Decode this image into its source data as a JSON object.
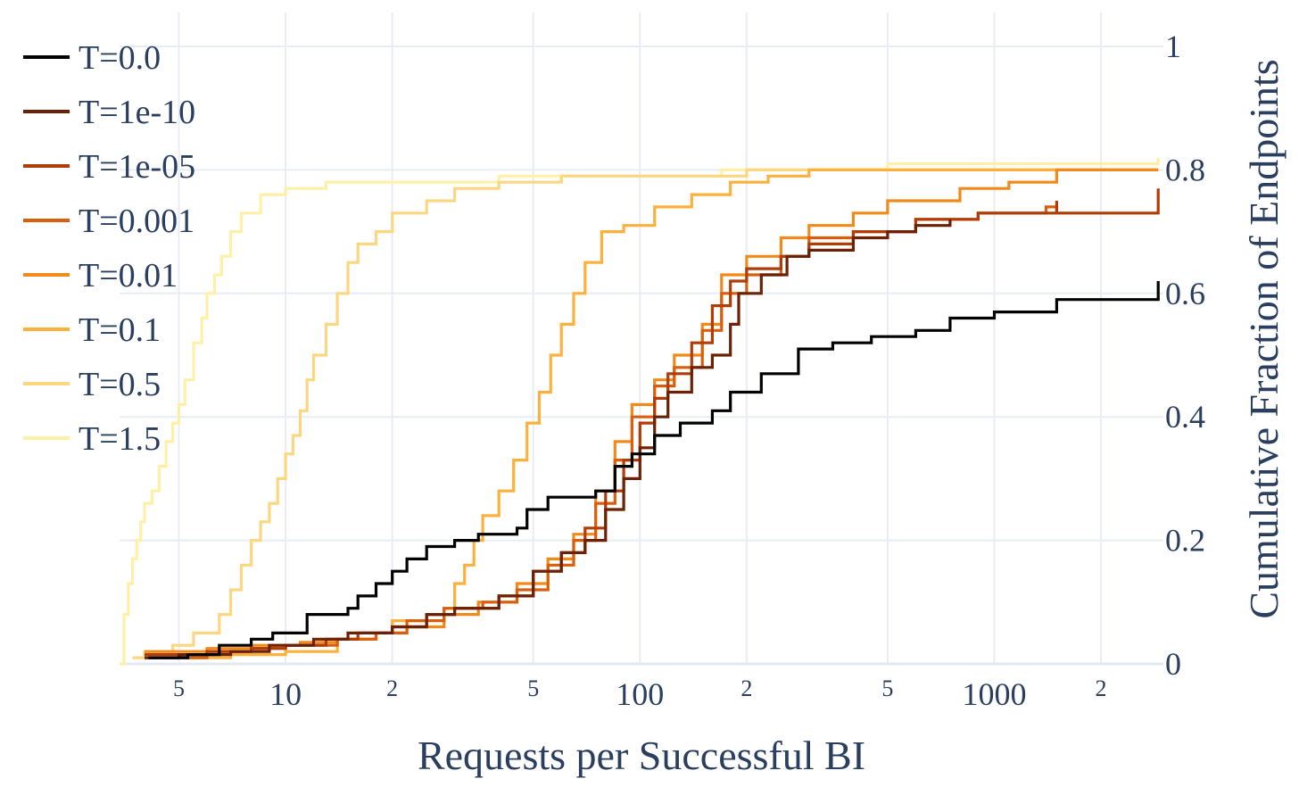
{
  "chart_data": {
    "type": "line",
    "line_shape": "step (empirical CDF)",
    "xlabel": "Requests per Successful BI",
    "ylabel": "Cumulative Fraction of Endpoints",
    "x_scale": "log",
    "xlim": [
      3.4,
      3000
    ],
    "ylim": [
      0,
      1.04
    ],
    "y_axis_side": "right",
    "grid": true,
    "legend_position": "top-left",
    "x_tick_labels_major": [
      {
        "value": 10,
        "label": "10"
      },
      {
        "value": 100,
        "label": "100"
      },
      {
        "value": 1000,
        "label": "1000"
      }
    ],
    "x_tick_labels_minor": [
      {
        "value": 5,
        "label": "5"
      },
      {
        "value": 20,
        "label": "2"
      },
      {
        "value": 50,
        "label": "5"
      },
      {
        "value": 200,
        "label": "2"
      },
      {
        "value": 500,
        "label": "5"
      },
      {
        "value": 2000,
        "label": "2"
      }
    ],
    "y_tick_labels": [
      {
        "value": 0,
        "label": "0"
      },
      {
        "value": 0.2,
        "label": "0.2"
      },
      {
        "value": 0.4,
        "label": "0.4"
      },
      {
        "value": 0.6,
        "label": "0.6"
      },
      {
        "value": 0.8,
        "label": "0.8"
      },
      {
        "value": 1,
        "label": "1"
      }
    ],
    "series": [
      {
        "name": "T=0.0",
        "color": "#000000",
        "points": [
          [
            4.1,
            0.01
          ],
          [
            5.3,
            0.015
          ],
          [
            6.5,
            0.03
          ],
          [
            8.0,
            0.04
          ],
          [
            9.2,
            0.05
          ],
          [
            11.5,
            0.08
          ],
          [
            15,
            0.09
          ],
          [
            16,
            0.11
          ],
          [
            18,
            0.13
          ],
          [
            20,
            0.15
          ],
          [
            22,
            0.17
          ],
          [
            25,
            0.19
          ],
          [
            30,
            0.2
          ],
          [
            35,
            0.21
          ],
          [
            45,
            0.22
          ],
          [
            48,
            0.25
          ],
          [
            55,
            0.27
          ],
          [
            75,
            0.28
          ],
          [
            85,
            0.32
          ],
          [
            95,
            0.34
          ],
          [
            110,
            0.37
          ],
          [
            130,
            0.39
          ],
          [
            160,
            0.41
          ],
          [
            180,
            0.44
          ],
          [
            220,
            0.47
          ],
          [
            280,
            0.51
          ],
          [
            350,
            0.52
          ],
          [
            450,
            0.53
          ],
          [
            600,
            0.54
          ],
          [
            750,
            0.56
          ],
          [
            1000,
            0.57
          ],
          [
            1500,
            0.59
          ],
          [
            2900,
            0.59
          ],
          [
            2900,
            0.62
          ]
        ]
      },
      {
        "name": "T=1e-10",
        "color": "#6b2104",
        "points": [
          [
            4.0,
            0.01
          ],
          [
            5,
            0.015
          ],
          [
            7,
            0.02
          ],
          [
            9,
            0.03
          ],
          [
            12,
            0.04
          ],
          [
            15,
            0.05
          ],
          [
            20,
            0.06
          ],
          [
            25,
            0.08
          ],
          [
            30,
            0.09
          ],
          [
            40,
            0.11
          ],
          [
            50,
            0.15
          ],
          [
            60,
            0.18
          ],
          [
            70,
            0.2
          ],
          [
            80,
            0.25
          ],
          [
            90,
            0.3
          ],
          [
            100,
            0.35
          ],
          [
            110,
            0.4
          ],
          [
            120,
            0.44
          ],
          [
            140,
            0.48
          ],
          [
            160,
            0.5
          ],
          [
            180,
            0.55
          ],
          [
            190,
            0.6
          ],
          [
            220,
            0.63
          ],
          [
            260,
            0.66
          ],
          [
            300,
            0.67
          ],
          [
            400,
            0.69
          ],
          [
            500,
            0.7
          ],
          [
            600,
            0.71
          ],
          [
            750,
            0.72
          ]
        ]
      },
      {
        "name": "T=1e-05",
        "color": "#b03c06",
        "points": [
          [
            4.0,
            0.015
          ],
          [
            6,
            0.02
          ],
          [
            8,
            0.025
          ],
          [
            10,
            0.03
          ],
          [
            13,
            0.04
          ],
          [
            16,
            0.05
          ],
          [
            20,
            0.06
          ],
          [
            25,
            0.08
          ],
          [
            30,
            0.09
          ],
          [
            40,
            0.11
          ],
          [
            50,
            0.15
          ],
          [
            60,
            0.18
          ],
          [
            70,
            0.22
          ],
          [
            80,
            0.28
          ],
          [
            90,
            0.33
          ],
          [
            100,
            0.39
          ],
          [
            110,
            0.43
          ],
          [
            120,
            0.47
          ],
          [
            140,
            0.52
          ],
          [
            160,
            0.58
          ],
          [
            180,
            0.62
          ],
          [
            200,
            0.64
          ],
          [
            250,
            0.66
          ],
          [
            300,
            0.68
          ],
          [
            400,
            0.7
          ],
          [
            600,
            0.72
          ],
          [
            900,
            0.73
          ],
          [
            1400,
            0.73
          ],
          [
            1500,
            0.75
          ],
          [
            1500,
            0.73
          ],
          [
            2900,
            0.73
          ],
          [
            2900,
            0.77
          ]
        ]
      },
      {
        "name": "T=0.001",
        "color": "#d95f0e",
        "points": [
          [
            4.0,
            0.01
          ],
          [
            6,
            0.02
          ],
          [
            8,
            0.025
          ],
          [
            10,
            0.03
          ],
          [
            14,
            0.04
          ],
          [
            18,
            0.05
          ],
          [
            22,
            0.07
          ],
          [
            28,
            0.09
          ],
          [
            36,
            0.1
          ],
          [
            45,
            0.12
          ],
          [
            55,
            0.16
          ],
          [
            65,
            0.2
          ],
          [
            75,
            0.26
          ],
          [
            85,
            0.33
          ],
          [
            95,
            0.4
          ],
          [
            110,
            0.45
          ],
          [
            125,
            0.48
          ],
          [
            150,
            0.54
          ],
          [
            170,
            0.6
          ],
          [
            200,
            0.63
          ],
          [
            250,
            0.66
          ],
          [
            300,
            0.69
          ],
          [
            400,
            0.7
          ],
          [
            600,
            0.72
          ],
          [
            900,
            0.73
          ],
          [
            1400,
            0.74
          ],
          [
            1500,
            0.73
          ]
        ]
      },
      {
        "name": "T=0.01",
        "color": "#f18a1b",
        "points": [
          [
            4.0,
            0.02
          ],
          [
            6,
            0.025
          ],
          [
            8,
            0.03
          ],
          [
            11,
            0.035
          ],
          [
            14,
            0.04
          ],
          [
            18,
            0.05
          ],
          [
            22,
            0.06
          ],
          [
            28,
            0.08
          ],
          [
            35,
            0.1
          ],
          [
            45,
            0.13
          ],
          [
            55,
            0.17
          ],
          [
            65,
            0.21
          ],
          [
            75,
            0.28
          ],
          [
            85,
            0.36
          ],
          [
            95,
            0.42
          ],
          [
            110,
            0.46
          ],
          [
            125,
            0.5
          ],
          [
            150,
            0.55
          ],
          [
            170,
            0.63
          ],
          [
            200,
            0.66
          ],
          [
            250,
            0.69
          ],
          [
            300,
            0.71
          ],
          [
            400,
            0.73
          ],
          [
            500,
            0.75
          ],
          [
            800,
            0.77
          ],
          [
            1100,
            0.78
          ],
          [
            1500,
            0.8
          ],
          [
            2900,
            0.8
          ]
        ]
      },
      {
        "name": "T=0.1",
        "color": "#fdb13c",
        "points": [
          [
            4.5,
            0.01
          ],
          [
            7,
            0.015
          ],
          [
            10,
            0.02
          ],
          [
            14,
            0.04
          ],
          [
            18,
            0.05
          ],
          [
            20,
            0.07
          ],
          [
            25,
            0.08
          ],
          [
            28,
            0.09
          ],
          [
            30,
            0.13
          ],
          [
            32,
            0.16
          ],
          [
            34,
            0.2
          ],
          [
            36,
            0.24
          ],
          [
            40,
            0.28
          ],
          [
            44,
            0.33
          ],
          [
            48,
            0.39
          ],
          [
            52,
            0.44
          ],
          [
            56,
            0.5
          ],
          [
            60,
            0.55
          ],
          [
            65,
            0.6
          ],
          [
            70,
            0.65
          ],
          [
            78,
            0.7
          ],
          [
            90,
            0.71
          ],
          [
            110,
            0.74
          ],
          [
            140,
            0.76
          ],
          [
            180,
            0.78
          ],
          [
            230,
            0.79
          ],
          [
            300,
            0.8
          ],
          [
            500,
            0.8
          ],
          [
            2900,
            0.8
          ]
        ]
      },
      {
        "name": "T=0.5",
        "color": "#fdd680",
        "points": [
          [
            3.7,
            0.01
          ],
          [
            4.0,
            0.02
          ],
          [
            4.8,
            0.03
          ],
          [
            5.5,
            0.05
          ],
          [
            6.5,
            0.08
          ],
          [
            7.0,
            0.12
          ],
          [
            7.5,
            0.16
          ],
          [
            8.0,
            0.2
          ],
          [
            8.5,
            0.23
          ],
          [
            9.0,
            0.26
          ],
          [
            9.5,
            0.3
          ],
          [
            10,
            0.34
          ],
          [
            10.5,
            0.37
          ],
          [
            11,
            0.41
          ],
          [
            11.5,
            0.46
          ],
          [
            12,
            0.5
          ],
          [
            13,
            0.55
          ],
          [
            14,
            0.6
          ],
          [
            15,
            0.65
          ],
          [
            16,
            0.68
          ],
          [
            18,
            0.7
          ],
          [
            20,
            0.73
          ],
          [
            25,
            0.75
          ],
          [
            30,
            0.77
          ],
          [
            40,
            0.78
          ],
          [
            60,
            0.79
          ],
          [
            100,
            0.79
          ],
          [
            200,
            0.8
          ],
          [
            500,
            0.8
          ],
          [
            2900,
            0.8
          ]
        ]
      },
      {
        "name": "T=1.5",
        "color": "#fff0a8",
        "points": [
          [
            3.4,
            0.0
          ],
          [
            3.5,
            0.08
          ],
          [
            3.6,
            0.13
          ],
          [
            3.7,
            0.17
          ],
          [
            3.8,
            0.2
          ],
          [
            3.9,
            0.23
          ],
          [
            4.0,
            0.26
          ],
          [
            4.2,
            0.28
          ],
          [
            4.4,
            0.32
          ],
          [
            4.6,
            0.36
          ],
          [
            4.8,
            0.39
          ],
          [
            5.0,
            0.42
          ],
          [
            5.2,
            0.46
          ],
          [
            5.5,
            0.52
          ],
          [
            5.8,
            0.56
          ],
          [
            6.0,
            0.6
          ],
          [
            6.3,
            0.63
          ],
          [
            6.6,
            0.66
          ],
          [
            7.0,
            0.7
          ],
          [
            7.5,
            0.73
          ],
          [
            8.5,
            0.76
          ],
          [
            10,
            0.77
          ],
          [
            13,
            0.78
          ],
          [
            20,
            0.78
          ],
          [
            40,
            0.79
          ],
          [
            100,
            0.79
          ],
          [
            170,
            0.8
          ],
          [
            500,
            0.81
          ],
          [
            2900,
            0.81
          ],
          [
            2900,
            0.82
          ]
        ]
      }
    ]
  }
}
